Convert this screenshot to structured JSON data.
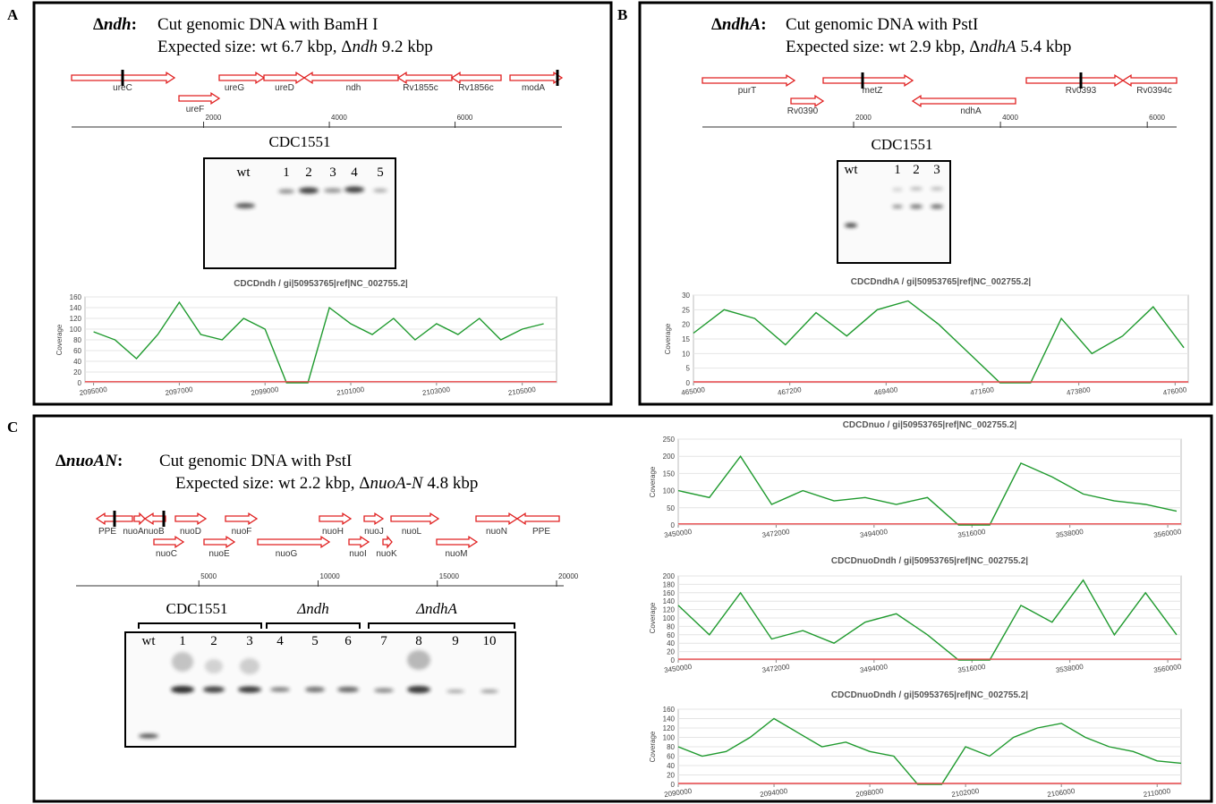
{
  "panels": [
    {
      "label": "A",
      "heading": {
        "symbol": "Δ",
        "gene": "ndh",
        "colon": ":"
      },
      "cut": "Cut genomic DNA with BamH I",
      "expected": {
        "prefix": "Expected size: wt 6.7 kbp, Δ",
        "gene": "ndh",
        "suffix": " 9.2 kbp"
      },
      "map": {
        "genes": [
          "ureC",
          "ureF",
          "ureG",
          "ureD",
          "ndh",
          "Rv1855c",
          "Rv1856c",
          "modA"
        ],
        "xlim": [
          -100,
          7700
        ],
        "ticks": [
          2000,
          4000,
          6000
        ]
      },
      "gel": {
        "groups": [
          "CDC1551"
        ],
        "lanes": [
          "wt",
          "1",
          "2",
          "3",
          "4",
          "5"
        ]
      },
      "coverage": [
        {
          "title": "CDCDndh / gi|50953765|ref|NC_002755.2|",
          "ylabel": "Coverage",
          "ylim": [
            0,
            160
          ],
          "yticks": [
            0,
            20,
            40,
            60,
            80,
            100,
            120,
            140,
            160
          ],
          "xlim": [
            2094800,
            2105800
          ],
          "xticks": [
            2095000,
            2097000,
            2099000,
            2101000,
            2103000,
            2105000
          ],
          "series": [
            {
              "color": "#1f9a2e",
              "x": [
                2095000,
                2095500,
                2096000,
                2096500,
                2097000,
                2097500,
                2098000,
                2098500,
                2099000,
                2099500,
                2100000,
                2100500,
                2101000,
                2101500,
                2102000,
                2102500,
                2103000,
                2103500,
                2104000,
                2104500,
                2105000,
                2105500
              ],
              "values": [
                95,
                80,
                45,
                90,
                150,
                90,
                80,
                120,
                100,
                0,
                0,
                140,
                110,
                90,
                120,
                80,
                110,
                90,
                120,
                80,
                100,
                110
              ]
            },
            {
              "color": "#e8474a",
              "x": [
                2094800,
                2105800
              ],
              "values": [
                2,
                2
              ]
            }
          ]
        }
      ]
    },
    {
      "label": "B",
      "heading": {
        "symbol": "Δ",
        "gene": "ndhA",
        "colon": ":"
      },
      "cut": "Cut genomic DNA with PstI",
      "expected": {
        "prefix": "Expected size: wt 2.9 kbp, Δ",
        "gene": "ndhA",
        "suffix": " 5.4 kbp"
      },
      "map": {
        "genes": [
          "purT",
          "Rv0390",
          "metZ",
          "ndhA",
          "Rv0393",
          "Rv0394c"
        ],
        "xlim": [
          -60,
          6400
        ],
        "ticks": [
          2000,
          4000,
          6000
        ]
      },
      "gel": {
        "groups": [
          "CDC1551"
        ],
        "lanes": [
          "wt",
          "1",
          "2",
          "3"
        ]
      },
      "coverage": [
        {
          "title": "CDCDndhA / gi|50953765|ref|NC_002755.2|",
          "ylabel": "Coverage",
          "ylim": [
            0,
            30
          ],
          "yticks": [
            0,
            5,
            10,
            15,
            20,
            25,
            30
          ],
          "xlim": [
            465000,
            476300
          ],
          "xticks": [
            465000,
            467200,
            469400,
            471600,
            473800,
            476000
          ],
          "series": [
            {
              "color": "#1f9a2e",
              "x": [
                465000,
                465700,
                466400,
                467100,
                467800,
                468500,
                469200,
                469900,
                470600,
                471300,
                472000,
                472700,
                473400,
                474100,
                474800,
                475500,
                476200
              ],
              "values": [
                17,
                25,
                22,
                13,
                24,
                16,
                25,
                28,
                20,
                10,
                0,
                0,
                22,
                10,
                16,
                26,
                12
              ]
            },
            {
              "color": "#e8474a",
              "x": [
                465000,
                476300
              ],
              "values": [
                0.3,
                0.3
              ]
            }
          ]
        }
      ]
    },
    {
      "label": "C",
      "heading": {
        "symbol": "Δ",
        "gene": "nuoAN",
        "colon": ":"
      },
      "cut": "Cut genomic DNA with PstI",
      "expected": {
        "prefix": "Expected size: wt 2.2 kbp, Δ",
        "gene": "nuoA-N",
        "suffix": " 4.8 kbp"
      },
      "map": {
        "genes": [
          "PPE",
          "nuoA",
          "nuoB",
          "nuoC",
          "nuoD",
          "nuoE",
          "nuoF",
          "nuoG",
          "nuoH",
          "nuoI",
          "nuoJ",
          "nuoK",
          "nuoL",
          "nuoM",
          "nuoN",
          "PPE"
        ],
        "xlim": [
          -150,
          20300
        ],
        "ticks": [
          5000,
          10000,
          15000,
          20000
        ]
      },
      "gel": {
        "groups": [
          "CDC1551",
          "Δndh",
          "ΔndhA"
        ],
        "lanes": [
          "wt",
          "1",
          "2",
          "3",
          "4",
          "5",
          "6",
          "7",
          "8",
          "9",
          "10"
        ]
      },
      "coverage": [
        {
          "title": "CDCDnuo / gi|50953765|ref|NC_002755.2|",
          "ylabel": "Coverage",
          "ylim": [
            0,
            250
          ],
          "yticks": [
            0,
            50,
            100,
            150,
            200,
            250
          ],
          "xlim": [
            3450000,
            3563000
          ],
          "xticks": [
            3450000,
            3472000,
            3494000,
            3516000,
            3538000,
            3560000
          ],
          "series": [
            {
              "color": "#1f9a2e",
              "x": [
                3450000,
                3457000,
                3464000,
                3471000,
                3478000,
                3485000,
                3492000,
                3499000,
                3506000,
                3513000,
                3520000,
                3527000,
                3534000,
                3541000,
                3548000,
                3555000,
                3562000
              ],
              "values": [
                100,
                80,
                200,
                60,
                100,
                70,
                80,
                60,
                80,
                0,
                0,
                180,
                140,
                90,
                70,
                60,
                40
              ]
            },
            {
              "color": "#e8474a",
              "x": [
                3450000,
                3563000
              ],
              "values": [
                3,
                3
              ]
            }
          ]
        },
        {
          "title": "CDCDnuoDndh / gi|50953765|ref|NC_002755.2|",
          "ylabel": "Coverage",
          "ylim": [
            0,
            200
          ],
          "yticks": [
            0,
            20,
            40,
            60,
            80,
            100,
            120,
            140,
            160,
            180,
            200
          ],
          "xlim": [
            3450000,
            3563000
          ],
          "xticks": [
            3450000,
            3472000,
            3494000,
            3516000,
            3538000,
            3560000
          ],
          "series": [
            {
              "color": "#1f9a2e",
              "x": [
                3450000,
                3457000,
                3464000,
                3471000,
                3478000,
                3485000,
                3492000,
                3499000,
                3506000,
                3513000,
                3520000,
                3527000,
                3534000,
                3541000,
                3548000,
                3555000,
                3562000
              ],
              "values": [
                130,
                60,
                160,
                50,
                70,
                40,
                90,
                110,
                60,
                0,
                0,
                130,
                90,
                190,
                60,
                160,
                60
              ]
            },
            {
              "color": "#e8474a",
              "x": [
                3450000,
                3563000
              ],
              "values": [
                2,
                2
              ]
            }
          ]
        },
        {
          "title": "CDCDnuoDndh / gi|50953765|ref|NC_002755.2|",
          "ylabel": "Coverage",
          "ylim": [
            0,
            160
          ],
          "yticks": [
            0,
            20,
            40,
            60,
            80,
            100,
            120,
            140,
            160
          ],
          "xlim": [
            2090000,
            2111000
          ],
          "xticks": [
            2090000,
            2094000,
            2098000,
            2102000,
            2106000,
            2110000
          ],
          "series": [
            {
              "color": "#1f9a2e",
              "x": [
                2090000,
                2091000,
                2092000,
                2093000,
                2094000,
                2095000,
                2096000,
                2097000,
                2098000,
                2099000,
                2100000,
                2101000,
                2102000,
                2103000,
                2104000,
                2105000,
                2106000,
                2107000,
                2108000,
                2109000,
                2110000,
                2111000
              ],
              "values": [
                80,
                60,
                70,
                100,
                140,
                110,
                80,
                90,
                70,
                60,
                0,
                0,
                80,
                60,
                100,
                120,
                130,
                100,
                80,
                70,
                50,
                45
              ]
            },
            {
              "color": "#e8474a",
              "x": [
                2090000,
                2111000
              ],
              "values": [
                2,
                2
              ]
            }
          ]
        }
      ]
    }
  ]
}
